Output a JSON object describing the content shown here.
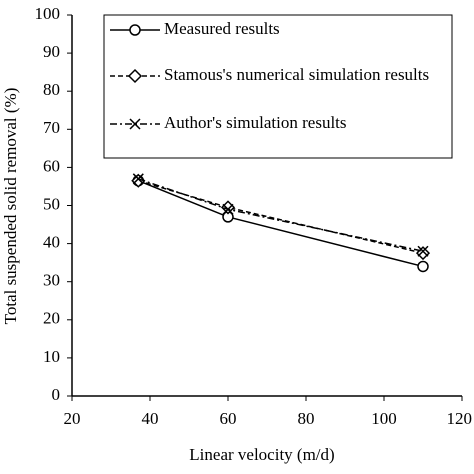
{
  "chart_data": {
    "type": "line",
    "x_label": "Linear velocity (m/d)",
    "y_label": "Total suspended solid removal (%)",
    "xlim": [
      20,
      120
    ],
    "xticks": [
      20,
      40,
      60,
      80,
      100,
      120
    ],
    "ylim": [
      0,
      100
    ],
    "yticks": [
      0,
      10,
      20,
      30,
      40,
      50,
      60,
      70,
      80,
      90,
      100
    ],
    "grid": false,
    "legend": "upper right",
    "series": [
      {
        "name": "Measured results",
        "color": "#000000",
        "linestyle": "solid",
        "marker": "circle",
        "x": [
          37,
          60,
          110
        ],
        "values": [
          56.5,
          47,
          34
        ]
      },
      {
        "name": "Stamous's numerical simulation results",
        "color": "#000000",
        "linestyle": "dashed",
        "marker": "diamond",
        "x": [
          37,
          60,
          110
        ],
        "values": [
          56.5,
          49.5,
          37.5
        ]
      },
      {
        "name": "Author's simulation results",
        "color": "#000000",
        "linestyle": "dashdot",
        "marker": "x",
        "x": [
          37,
          60,
          110
        ],
        "values": [
          57,
          49,
          38
        ]
      }
    ]
  }
}
